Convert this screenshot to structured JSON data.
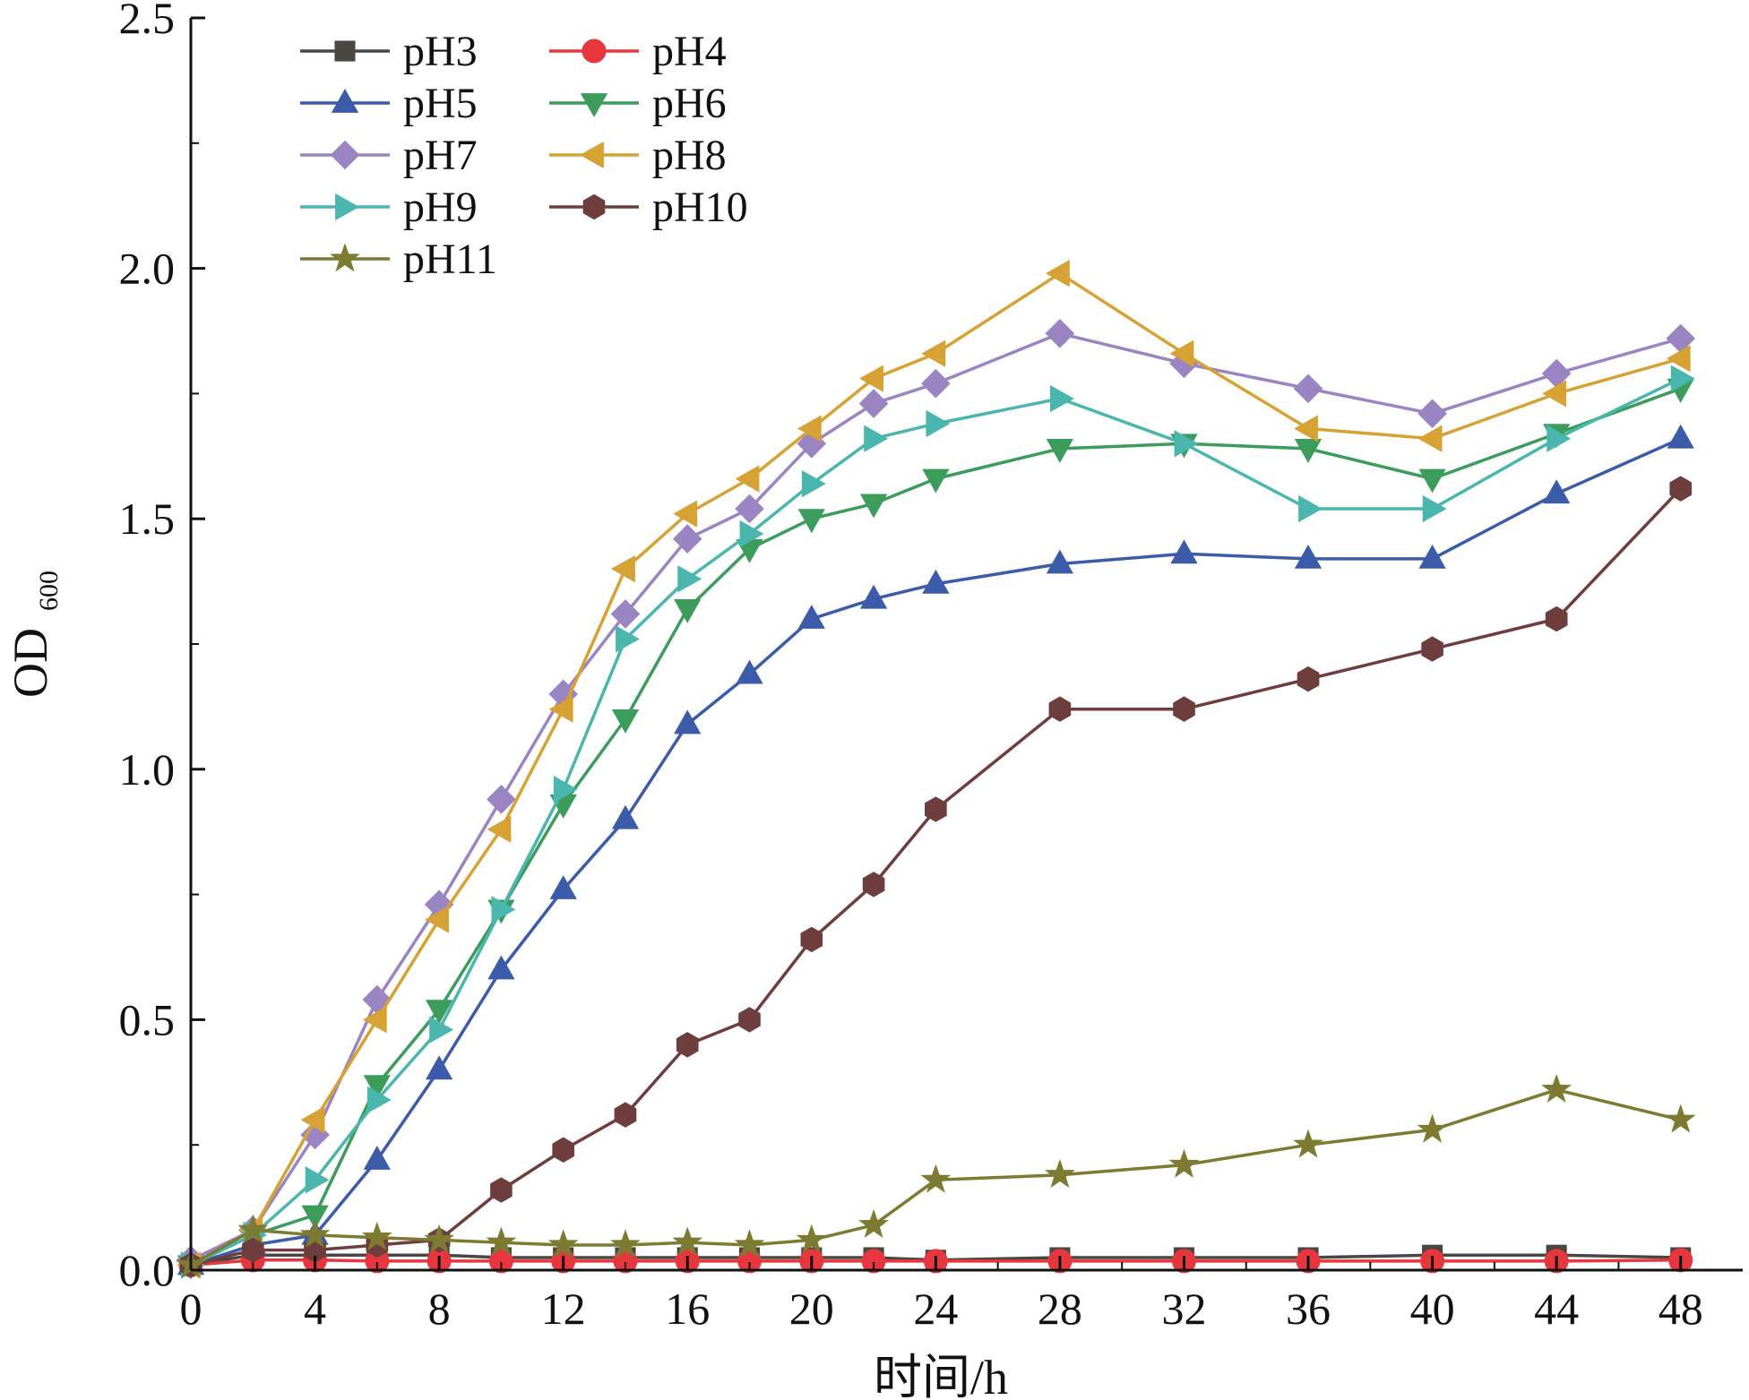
{
  "chart_data": {
    "type": "line",
    "xlabel": "时间/h",
    "ylabel": "OD",
    "ylabel_sub": "600",
    "xlim": [
      0,
      50
    ],
    "ylim": [
      0,
      2.5
    ],
    "xticks": [
      0,
      4,
      8,
      12,
      16,
      20,
      24,
      28,
      32,
      36,
      40,
      44,
      48
    ],
    "yticks": [
      0.0,
      0.5,
      1.0,
      1.5,
      2.0,
      2.5
    ],
    "ytick_labels": [
      "0.0",
      "0.5",
      "1.0",
      "1.5",
      "2.0",
      "2.5"
    ],
    "x": [
      0,
      2,
      4,
      6,
      8,
      10,
      12,
      14,
      16,
      18,
      20,
      22,
      24,
      28,
      32,
      36,
      40,
      44,
      48
    ],
    "legend_position": "top-left",
    "series": [
      {
        "name": "pH3",
        "color": "#4a4743",
        "marker": "square",
        "values": [
          0.01,
          0.03,
          0.03,
          0.03,
          0.03,
          0.025,
          0.025,
          0.025,
          0.025,
          0.025,
          0.025,
          0.025,
          0.02,
          0.025,
          0.025,
          0.025,
          0.03,
          0.03,
          0.025
        ]
      },
      {
        "name": "pH4",
        "color": "#e8363e",
        "marker": "circle",
        "values": [
          0.01,
          0.02,
          0.02,
          0.018,
          0.018,
          0.018,
          0.018,
          0.018,
          0.018,
          0.018,
          0.018,
          0.018,
          0.018,
          0.018,
          0.018,
          0.018,
          0.018,
          0.018,
          0.02
        ]
      },
      {
        "name": "pH5",
        "color": "#3c5ba8",
        "marker": "triangle-up",
        "values": [
          0.01,
          0.05,
          0.07,
          0.22,
          0.4,
          0.6,
          0.76,
          0.9,
          1.09,
          1.19,
          1.3,
          1.34,
          1.37,
          1.41,
          1.43,
          1.42,
          1.42,
          1.55,
          1.66
        ]
      },
      {
        "name": "pH6",
        "color": "#3c9c5c",
        "marker": "triangle-down",
        "values": [
          0.01,
          0.07,
          0.11,
          0.37,
          0.52,
          0.72,
          0.93,
          1.1,
          1.32,
          1.44,
          1.5,
          1.53,
          1.58,
          1.64,
          1.65,
          1.64,
          1.58,
          1.67,
          1.76
        ]
      },
      {
        "name": "pH7",
        "color": "#9b84c2",
        "marker": "diamond",
        "values": [
          0.02,
          0.08,
          0.27,
          0.54,
          0.73,
          0.94,
          1.15,
          1.31,
          1.46,
          1.52,
          1.65,
          1.73,
          1.77,
          1.87,
          1.81,
          1.76,
          1.71,
          1.79,
          1.86
        ]
      },
      {
        "name": "pH8",
        "color": "#d6a234",
        "marker": "triangle-left",
        "values": [
          0.01,
          0.08,
          0.3,
          0.5,
          0.7,
          0.88,
          1.12,
          1.4,
          1.51,
          1.58,
          1.68,
          1.78,
          1.83,
          1.99,
          1.83,
          1.68,
          1.66,
          1.75,
          1.82
        ]
      },
      {
        "name": "pH9",
        "color": "#4ab6ad",
        "marker": "triangle-right",
        "values": [
          0.01,
          0.07,
          0.18,
          0.34,
          0.48,
          0.72,
          0.96,
          1.26,
          1.38,
          1.47,
          1.57,
          1.66,
          1.69,
          1.74,
          1.65,
          1.52,
          1.52,
          1.66,
          1.78
        ]
      },
      {
        "name": "pH10",
        "color": "#6e3e3e",
        "marker": "hexagon",
        "values": [
          0.01,
          0.04,
          0.04,
          0.05,
          0.06,
          0.16,
          0.24,
          0.31,
          0.45,
          0.5,
          0.66,
          0.77,
          0.92,
          1.12,
          1.12,
          1.18,
          1.24,
          1.3,
          1.56
        ]
      },
      {
        "name": "pH11",
        "color": "#7d7a32",
        "marker": "star",
        "values": [
          0.01,
          0.08,
          0.07,
          0.065,
          0.06,
          0.055,
          0.05,
          0.05,
          0.055,
          0.05,
          0.06,
          0.09,
          0.18,
          0.19,
          0.21,
          0.25,
          0.28,
          0.36,
          0.3
        ]
      }
    ]
  }
}
